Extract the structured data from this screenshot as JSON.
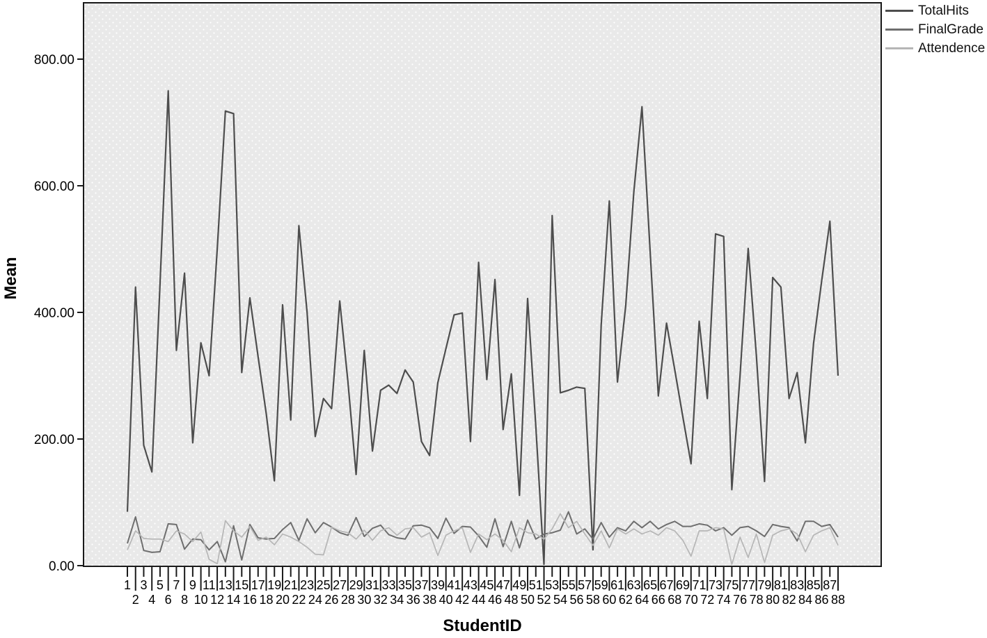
{
  "chart_data": {
    "type": "line",
    "title": "",
    "xlabel": "StudentID",
    "ylabel": "Mean",
    "ylim": [
      0,
      900
    ],
    "legend_position": "top-right-outside",
    "grid": false,
    "y_axis": {
      "tick_values": [
        0,
        200,
        400,
        600,
        800
      ],
      "tick_labels": [
        "0.00",
        "200.00",
        "400.00",
        "600.00",
        "800.00"
      ]
    },
    "x_axis": {
      "tick_labels": [
        "1",
        "2",
        "3",
        "4",
        "5",
        "6",
        "7",
        "8",
        "9",
        "10",
        "11",
        "12",
        "13",
        "14",
        "15",
        "16",
        "17",
        "18",
        "19",
        "20",
        "21",
        "22",
        "23",
        "24",
        "25",
        "26",
        "27",
        "28",
        "29",
        "30",
        "31",
        "32",
        "33",
        "34",
        "35",
        "36",
        "37",
        "38",
        "39",
        "40",
        "41",
        "42",
        "43",
        "44",
        "45",
        "46",
        "47",
        "48",
        "49",
        "50",
        "51",
        "52",
        "53",
        "54",
        "55",
        "56",
        "57",
        "58",
        "59",
        "60",
        "61",
        "62",
        "63",
        "64",
        "65",
        "66",
        "67",
        "68",
        "69",
        "70",
        "71",
        "72",
        "73",
        "74",
        "75",
        "76",
        "77",
        "78",
        "79",
        "80",
        "81",
        "82",
        "83",
        "84",
        "85",
        "86",
        "87",
        "88"
      ]
    },
    "series": [
      {
        "name": "TotalHits",
        "color": "#4d4d4d",
        "width": 2.2,
        "values": [
          85,
          440,
          190,
          148,
          445,
          750,
          340,
          462,
          194,
          352,
          300,
          500,
          718,
          714,
          305,
          423,
          330,
          240,
          134,
          412,
          230,
          537,
          400,
          204,
          264,
          248,
          418,
          290,
          144,
          340,
          181,
          277,
          285,
          272,
          309,
          290,
          196,
          174,
          289,
          343,
          396,
          399,
          196,
          479,
          294,
          452,
          215,
          303,
          111,
          422,
          220,
          2,
          553,
          273,
          277,
          282,
          280,
          25,
          380,
          576,
          290,
          410,
          590,
          725,
          495,
          268,
          383,
          310,
          235,
          161,
          386,
          264,
          524,
          520,
          120,
          300,
          501,
          333,
          133,
          455,
          440,
          264,
          305,
          194,
          351,
          450,
          544,
          300
        ]
      },
      {
        "name": "FinalGrade",
        "color": "#6e6e6e",
        "width": 2,
        "values": [
          35,
          77,
          24,
          21,
          22,
          66,
          65,
          26,
          42,
          41,
          25,
          38,
          6,
          63,
          9,
          65,
          44,
          42,
          43,
          57,
          68,
          40,
          74,
          52,
          68,
          61,
          52,
          48,
          76,
          46,
          59,
          64,
          49,
          44,
          42,
          63,
          64,
          60,
          43,
          75,
          51,
          62,
          61,
          47,
          29,
          74,
          30,
          70,
          28,
          72,
          42,
          50,
          52,
          56,
          85,
          50,
          58,
          42,
          68,
          45,
          60,
          55,
          70,
          60,
          70,
          58,
          65,
          70,
          62,
          62,
          66,
          64,
          55,
          60,
          48,
          60,
          62,
          55,
          46,
          65,
          62,
          60,
          39,
          70,
          70,
          62,
          65,
          45
        ]
      },
      {
        "name": "Attendence",
        "color": "#b6b6b6",
        "width": 1.7,
        "values": [
          25,
          55,
          43,
          42,
          42,
          38,
          55,
          50,
          38,
          53,
          10,
          3,
          71,
          55,
          45,
          62,
          40,
          45,
          33,
          50,
          45,
          38,
          29,
          18,
          17,
          61,
          55,
          52,
          42,
          56,
          40,
          55,
          60,
          48,
          58,
          60,
          45,
          52,
          16,
          48,
          55,
          60,
          21,
          50,
          41,
          50,
          40,
          22,
          60,
          52,
          50,
          42,
          58,
          82,
          60,
          70,
          50,
          32,
          55,
          28,
          58,
          50,
          58,
          50,
          55,
          48,
          60,
          55,
          40,
          15,
          55,
          55,
          60,
          58,
          2,
          45,
          13,
          50,
          5,
          48,
          55,
          58,
          50,
          22,
          48,
          55,
          60,
          32
        ]
      }
    ],
    "plot_style": {
      "background": "#e9e9e9",
      "dot_color": "#ffffff",
      "frame_color": "#1a1a1a",
      "tick_label_color": "#000000"
    }
  }
}
